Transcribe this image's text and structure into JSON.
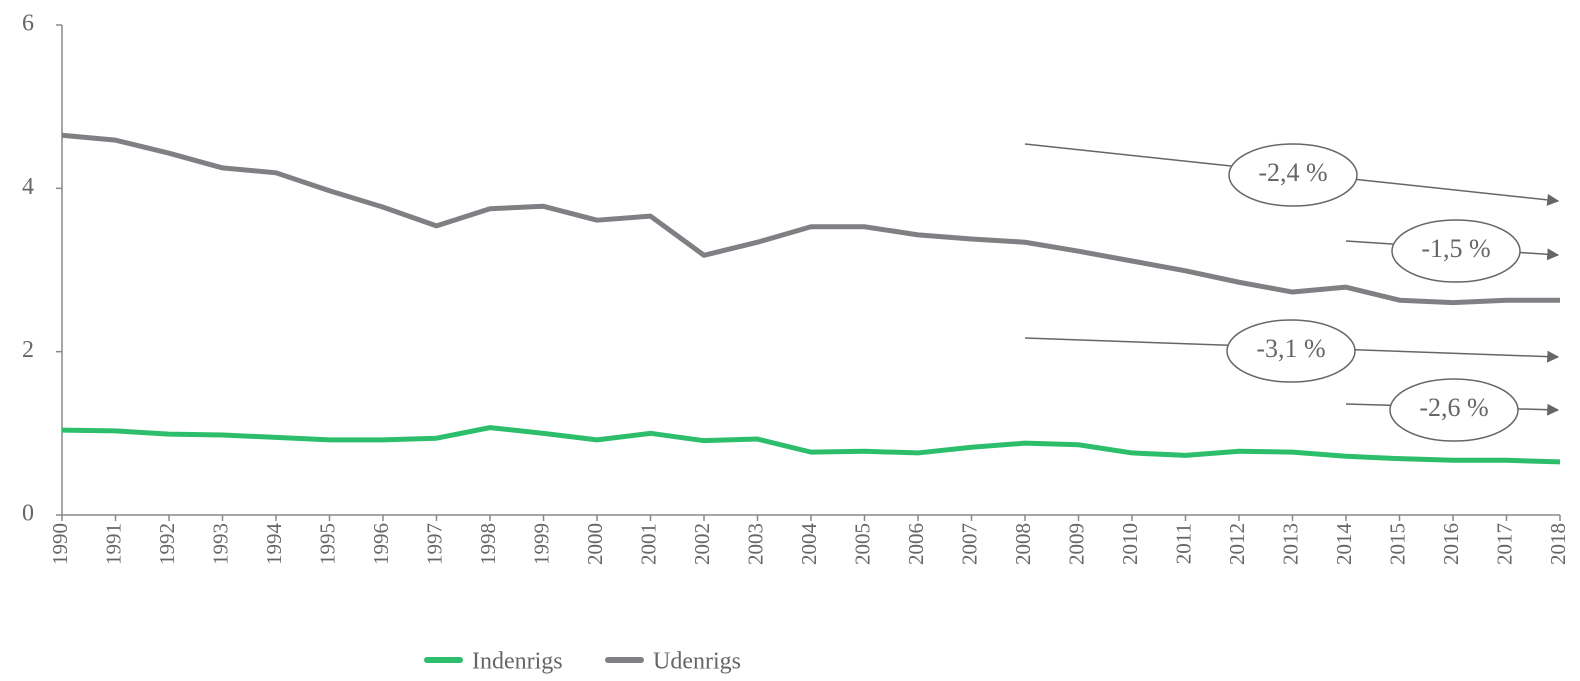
{
  "chart_data": {
    "type": "line",
    "x": [
      1990,
      1991,
      1992,
      1993,
      1994,
      1995,
      1996,
      1997,
      1998,
      1999,
      2000,
      2001,
      2002,
      2003,
      2004,
      2005,
      2006,
      2007,
      2008,
      2009,
      2010,
      2011,
      2012,
      2013,
      2014,
      2015,
      2016,
      2017,
      2018
    ],
    "xlim": [
      1990,
      2018
    ],
    "ylim": [
      0,
      6
    ],
    "yticks": [
      0,
      2,
      4,
      6
    ],
    "series": [
      {
        "name": "Indenrigs",
        "color": "#2dbe6c",
        "values": [
          1.04,
          1.03,
          0.99,
          0.98,
          0.95,
          0.92,
          0.92,
          0.94,
          1.07,
          1.0,
          0.92,
          1.0,
          0.91,
          0.93,
          0.77,
          0.78,
          0.76,
          0.83,
          0.88,
          0.86,
          0.76,
          0.73,
          0.78,
          0.77,
          0.72,
          0.69,
          0.67,
          0.67,
          0.65
        ]
      },
      {
        "name": "Udenrigs",
        "color": "#808084",
        "values": [
          4.65,
          4.59,
          4.43,
          4.25,
          4.19,
          3.97,
          3.77,
          3.54,
          3.75,
          3.78,
          3.61,
          3.66,
          3.18,
          3.34,
          3.53,
          3.53,
          3.43,
          3.38,
          3.34,
          3.23,
          3.11,
          2.99,
          2.85,
          2.73,
          2.79,
          2.63,
          2.6,
          2.63,
          2.63
        ]
      }
    ],
    "annotations": [
      "-2,4 %",
      "-1,5 %",
      "-3,1 %",
      "-2,6 %"
    ],
    "legend": "bottom"
  }
}
